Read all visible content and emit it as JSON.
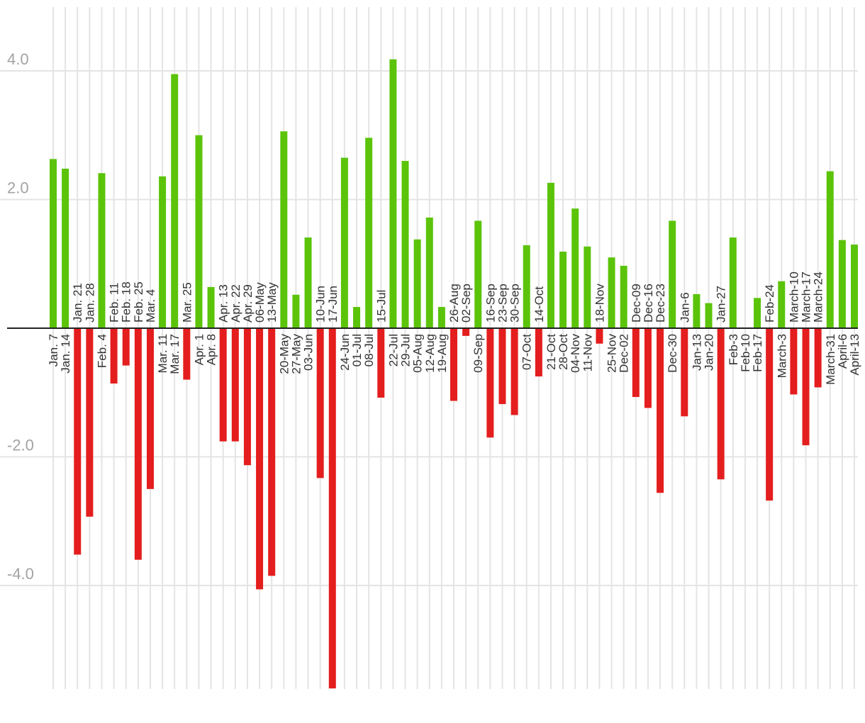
{
  "chart_data": {
    "type": "bar",
    "title": "",
    "xlabel": "",
    "ylabel": "",
    "ylim": [
      -5.6,
      5.0
    ],
    "y_ticks": [
      "4.0",
      "2.0",
      "-2.0",
      "-4.0"
    ],
    "grid": true,
    "legend": "none",
    "colors": {
      "positive": "#5bc40a",
      "negative": "#e41e1e",
      "grid": "#e4e4e4",
      "zero_line": "#222222",
      "tick_text": "#a3a3a3",
      "label_text": "#333333"
    },
    "categories": [
      "Jan. 7",
      "Jan. 14",
      "Jan. 21",
      "Jan. 28",
      "Feb. 4",
      "Feb. 11",
      "Feb. 18",
      "Feb. 25",
      "Mar. 4",
      "Mar. 11",
      "Mar. 17",
      "Mar. 25",
      "Apr. 1",
      "Apr. 8",
      "Apr. 13",
      "Apr. 22",
      "Apr. 29",
      "06-May",
      "13-May",
      "20-May",
      "27-May",
      "03-Jun",
      "10-Jun",
      "17-Jun",
      "24-Jun",
      "01-Jul",
      "08-Jul",
      "15-Jul",
      "22-Jul",
      "29-Jul",
      "05-Aug",
      "12-Aug",
      "19-Aug",
      "26-Aug",
      "02-Sep",
      "09-Sep",
      "16-Sep",
      "23-Sep",
      "30-Sep",
      "07-Oct",
      "14-Oct",
      "21-Oct",
      "28-Oct",
      "04-Nov",
      "11-Nov",
      "18-Nov",
      "25-Nov",
      "Dec-02",
      "Dec-09",
      "Dec-16",
      "Dec-23",
      "Dec-30",
      "Jan-6",
      "Jan-13",
      "Jan-20",
      "Jan-27",
      "Feb-3",
      "Feb-10",
      "Feb-17",
      "Feb-24",
      "March-3",
      "March-10",
      "March-17",
      "March-24",
      "March-31",
      "April-6",
      "April-13"
    ],
    "values": [
      2.63,
      2.48,
      -3.52,
      -2.93,
      2.41,
      -0.86,
      -0.58,
      -3.6,
      -2.5,
      2.36,
      3.95,
      -0.8,
      3.0,
      0.64,
      -1.76,
      -1.76,
      -2.13,
      -4.06,
      -3.85,
      3.06,
      0.52,
      1.41,
      -2.33,
      -5.6,
      2.65,
      0.33,
      2.96,
      -1.08,
      4.18,
      2.6,
      1.38,
      1.72,
      0.33,
      -1.13,
      -0.12,
      1.67,
      -1.7,
      -1.18,
      -1.35,
      1.29,
      -0.75,
      2.26,
      1.19,
      1.86,
      1.27,
      -0.24,
      1.1,
      0.97,
      -1.07,
      -1.24,
      -2.56,
      1.67,
      -1.37,
      0.53,
      0.39,
      -2.35,
      1.41,
      0,
      0.47,
      -2.68,
      0.73,
      -1.03,
      -1.82,
      -0.92,
      2.44,
      1.37,
      1.3
    ]
  }
}
